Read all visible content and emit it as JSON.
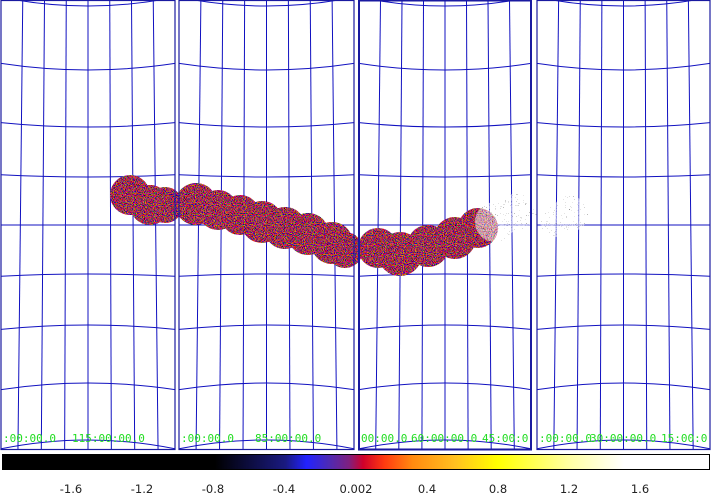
{
  "panels": [
    {
      "labels": [
        ":00:00.0",
        "115:00:00.0"
      ]
    },
    {
      "labels": [
        ":00:00.0",
        "85:00:00.0"
      ]
    },
    {
      "labels": [
        "00:00.0",
        "60:00:00.0",
        "45:00:0"
      ]
    },
    {
      "labels": [
        ":00:00.0",
        "30:00:00.0",
        "15:00:0"
      ]
    }
  ],
  "colorbar": {
    "ticks": [
      "-1.6",
      "-1.2",
      "-0.8",
      "-0.4",
      "0.002",
      "0.4",
      "0.8",
      "1.2",
      "1.6"
    ]
  },
  "colors": {
    "grid": "#1010c0",
    "frame": "#1a1aa0",
    "label": "#22dd22"
  }
}
